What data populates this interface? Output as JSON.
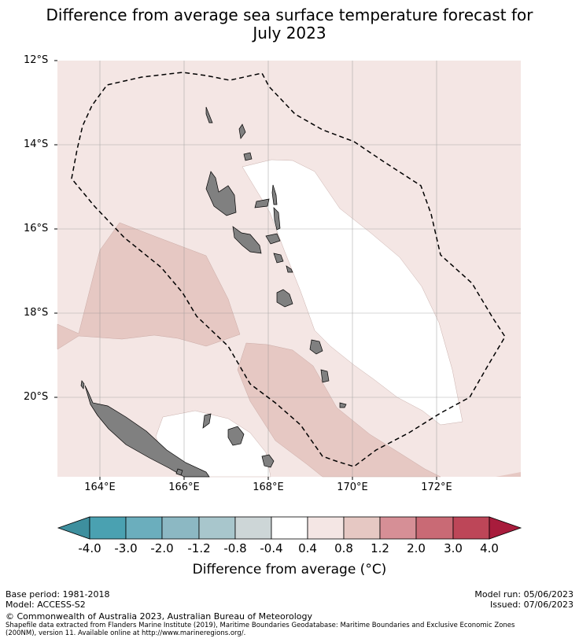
{
  "title": {
    "line1": "Difference from average sea surface temperature forecast for",
    "line2": "July 2023"
  },
  "map": {
    "lat_labels": [
      "12°S",
      "14°S",
      "16°S",
      "18°S",
      "20°S"
    ],
    "lon_labels": [
      "164°E",
      "166°E",
      "168°E",
      "170°E",
      "172°E"
    ],
    "lat_range": [
      -21.9,
      -12
    ],
    "lon_range": [
      162.98,
      173.95
    ],
    "colors": {
      "band_0_4_0_8": "#f4e6e4",
      "band_0_8_1_2": "#e6c8c3",
      "neutral": "#ffffff",
      "land": "#808080",
      "eez_line": "#000000",
      "grid": "#999999"
    }
  },
  "colorbar": {
    "ticks": [
      "-4.0",
      "-3.0",
      "-2.0",
      "-1.2",
      "-0.8",
      "-0.4",
      "0.4",
      "0.8",
      "1.2",
      "2.0",
      "3.0",
      "4.0"
    ],
    "colors": [
      "#3e8f9e",
      "#4aa1b1",
      "#6baebd",
      "#8cb8c3",
      "#a8c6cc",
      "#cdd6d7",
      "#ffffff",
      "#f4e6e4",
      "#e6c8c3",
      "#d68f96",
      "#c96a75",
      "#bd4658",
      "#a81c3c"
    ],
    "label": "Difference from average (",
    "label_unit": "°C)"
  },
  "footer": {
    "base_period": "Base period: 1981-2018",
    "model": "Model: ACCESS-S2",
    "model_run": "Model run: 05/06/2023",
    "issued": "Issued: 07/06/2023",
    "copyright": "© Commonwealth of Australia 2023, Australian Bureau of Meteorology",
    "source_line1": "Shapefile data extracted from Flanders Marine Institute (2019), Maritime Boundaries Geodatabase: Maritime Boundaries and Exclusive Economic Zones",
    "source_line2": "(200NM), version 11. Available online at http://www.marineregions.org/."
  }
}
